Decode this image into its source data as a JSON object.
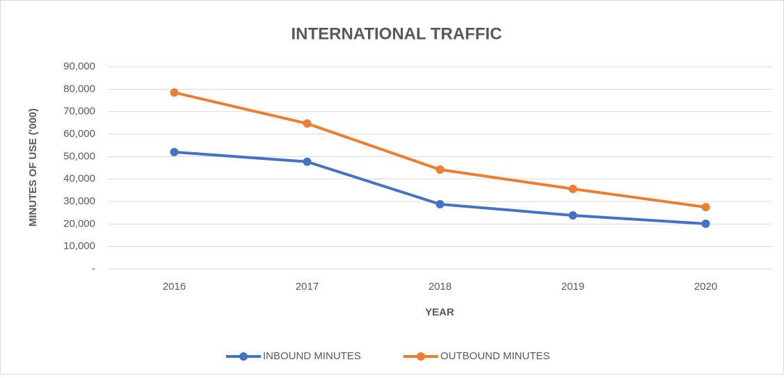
{
  "chart_data": {
    "type": "line",
    "title": "INTERNATIONAL TRAFFIC",
    "x_label": "YEAR",
    "y_label": "MINUTES  OF USE ('000)",
    "categories": [
      "2016",
      "2017",
      "2018",
      "2019",
      "2020"
    ],
    "series": [
      {
        "name": "INBOUND MINUTES",
        "color": "#4472c4",
        "values": [
          52000,
          47700,
          28800,
          23800,
          20100
        ]
      },
      {
        "name": "OUTBOUND MINUTES",
        "color": "#ed7d31",
        "values": [
          78500,
          64700,
          44200,
          35600,
          27500
        ]
      }
    ],
    "ylim": [
      0,
      90000
    ],
    "yticks": [
      {
        "value": 0,
        "label": "-"
      },
      {
        "value": 10000,
        "label": "10,000"
      },
      {
        "value": 20000,
        "label": "20,000"
      },
      {
        "value": 30000,
        "label": "30,000"
      },
      {
        "value": 40000,
        "label": "40,000"
      },
      {
        "value": 50000,
        "label": "50,000"
      },
      {
        "value": 60000,
        "label": "60,000"
      },
      {
        "value": 70000,
        "label": "70,000"
      },
      {
        "value": 80000,
        "label": "80,000"
      },
      {
        "value": 90000,
        "label": "90,000"
      }
    ],
    "grid": true,
    "legend": "bottom"
  }
}
